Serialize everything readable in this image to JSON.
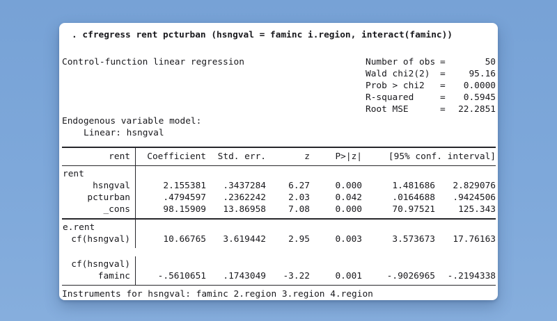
{
  "colors": {
    "desktop_background": "#7ea8da",
    "window_background": "#ffffff",
    "text": "#18181c"
  },
  "terminal": {
    "command": ". cfregress rent pcturban (hsngval = faminc i.region, interact(faminc))"
  },
  "results": {
    "title": "Control-function linear regression",
    "stats": [
      {
        "label": "Number of obs",
        "eq": "=",
        "value": "50"
      },
      {
        "label": "Wald chi2(2)",
        "eq": "=",
        "value": "95.16"
      },
      {
        "label": "Prob > chi2",
        "eq": "=",
        "value": "0.0000"
      },
      {
        "label": "R-squared",
        "eq": "=",
        "value": "0.5945"
      },
      {
        "label": "Root MSE",
        "eq": "=",
        "value": "22.2851"
      }
    ],
    "endogenous_header": "Endogenous variable model:",
    "endogenous_model": "Linear: hsngval"
  },
  "table": {
    "depvar": "rent",
    "columns": [
      "Coefficient",
      "Std. err.",
      "z",
      "P>|z|",
      "[95% conf. interval]"
    ],
    "sections": [
      {
        "after": "rule",
        "rows": [
          {
            "label": "rent",
            "align": "left",
            "values": []
          },
          {
            "label": "hsngval",
            "align": "right",
            "values": [
              "2.155381",
              ".3437284",
              "6.27",
              "0.000",
              "1.481686",
              "2.829076"
            ]
          },
          {
            "label": "pcturban",
            "align": "right",
            "values": [
              ".4794597",
              ".2362242",
              "2.03",
              "0.042",
              ".0164688",
              ".9424506"
            ]
          },
          {
            "label": "_cons",
            "align": "right",
            "values": [
              "98.15909",
              "13.86958",
              "7.08",
              "0.000",
              "70.97521",
              "125.343"
            ]
          }
        ]
      },
      {
        "after": "gap",
        "rows": [
          {
            "label": "e.rent",
            "align": "left",
            "values": []
          },
          {
            "label": "cf(hsngval)",
            "align": "right",
            "values": [
              "10.66765",
              "3.619442",
              "2.95",
              "0.003",
              "3.573673",
              "17.76163"
            ]
          }
        ]
      },
      {
        "after": "rule",
        "rows": [
          {
            "label": "cf(hsngval)",
            "align": "right",
            "values": []
          },
          {
            "label": "faminc",
            "align": "right",
            "values": [
              "-.5610651",
              ".1743049",
              "-3.22",
              "0.001",
              "-.9026965",
              "-.2194338"
            ]
          }
        ]
      }
    ],
    "footer": "Instruments for hsngval: faminc 2.region 3.region 4.region"
  }
}
